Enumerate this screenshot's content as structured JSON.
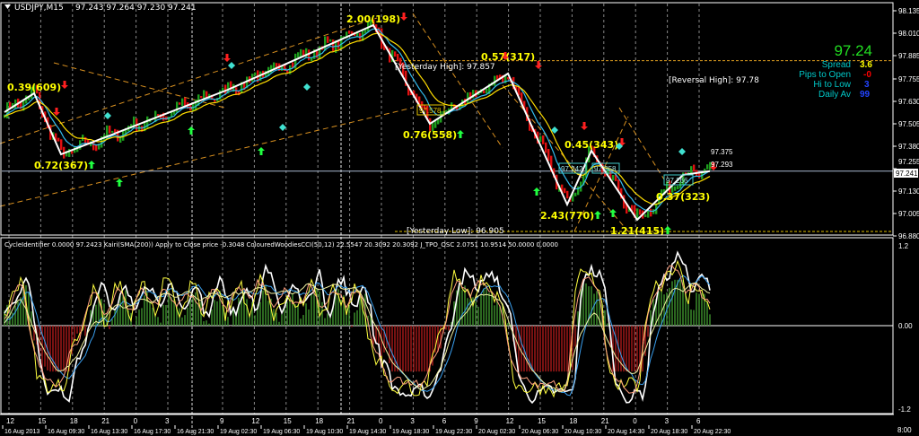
{
  "window": {
    "symbol_title": "USDJPY,M15",
    "ohlc": "97.243 97.264 97.230 97.241"
  },
  "info_panel": {
    "price": "97.24",
    "rows": [
      {
        "label": "Spread",
        "value": "3.6",
        "value_color": "#ffff00"
      },
      {
        "label": "Pips to Open",
        "value": "-0",
        "value_color": "#ff0000"
      },
      {
        "label": "Hi to Low",
        "value": "3",
        "value_color": "#0000ff"
      },
      {
        "label": "Daily Av",
        "value": "99",
        "value_color": "#0000ff"
      }
    ],
    "label_color": "#00c8c8",
    "price_color": "#00ff00"
  },
  "levels": {
    "yesterday_high": {
      "text": "[Yesterday High]: 97.857",
      "price": 97.857
    },
    "yesterday_low": {
      "text": "[Yesterday Low]: 96.905",
      "price": 96.905
    },
    "reversal_high": {
      "text": "[Reversal High]: 97.78",
      "price": 97.78
    },
    "current": {
      "text": "97.241",
      "price": 97.241
    }
  },
  "price_boxes": [
    "97.578",
    "97.242",
    "97.258",
    "97.266"
  ],
  "right_level_texts": [
    "97.375",
    "97.293"
  ],
  "indicator_header": "CycleIdentifier 0.0000 97.2423  Kairi(SMA(200)) Apply to Close price -0.3048  ColouredWoodiesCCI(50,12) 22.5547 20.3092 20.3092  J_TPO_OSC 2.0751 10.9514 50.0000 0.0000",
  "chart_data": {
    "type": "candlestick",
    "symbol": "USDJPY",
    "timeframe": "M15",
    "price_axis_ticks": [
      "98.135",
      "98.010",
      "97.885",
      "97.755",
      "97.630",
      "97.505",
      "97.380",
      "97.255",
      "97.130",
      "97.005",
      "96.880"
    ],
    "ylim": [
      96.88,
      98.135
    ],
    "indicator_axis_ticks": [
      "1.2",
      "0.00",
      "-1.2"
    ],
    "indicator_ylim": [
      -1.2,
      1.2
    ],
    "hour_ticks": [
      "12",
      "15",
      "18",
      "21",
      "0",
      "3",
      "9",
      "12",
      "15",
      "18",
      "21",
      "0",
      "3",
      "6",
      "9",
      "12",
      "15",
      "18",
      "21",
      "0",
      "3",
      "6"
    ],
    "date_ticks": [
      "16 Aug 2013",
      "16 Aug 09:30",
      "16 Aug 13:30",
      "16 Aug 17:30",
      "16 Aug 21:30",
      "19 Aug 02:30",
      "19 Aug 06:30",
      "19 Aug 10:30",
      "19 Aug 14:30",
      "19 Aug 18:30",
      "19 Aug 22:30",
      "20 Aug 02:30",
      "20 Aug 06:30",
      "20 Aug 10:30",
      "20 Aug 14:30",
      "20 Aug 18:30",
      "20 Aug 22:30"
    ],
    "corner_label": "8:00",
    "zigzag": [
      {
        "bar": 0,
        "price": 97.57,
        "label": ""
      },
      {
        "bar": 11,
        "price": 97.675,
        "label": "0.39(609)"
      },
      {
        "bar": 21,
        "price": 97.335,
        "label": "0.72(367)"
      },
      {
        "bar": 83,
        "price": 97.695,
        "label": ""
      },
      {
        "bar": 137,
        "price": 98.055,
        "label": "2.00(198)"
      },
      {
        "bar": 158,
        "price": 97.505,
        "label": "0.76(558)"
      },
      {
        "bar": 187,
        "price": 97.785,
        "label": "0.57(317)"
      },
      {
        "bar": 209,
        "price": 97.055,
        "label": "2.43(770)"
      },
      {
        "bar": 218,
        "price": 97.355,
        "label": "0.45(343)"
      },
      {
        "bar": 235,
        "price": 96.97,
        "label": "1.21(415)"
      },
      {
        "bar": 252,
        "price": 97.22,
        "label": "0.37(323)"
      },
      {
        "bar": 262,
        "price": 97.241,
        "label": ""
      }
    ],
    "colors": {
      "bull": "#1e9e1e",
      "bear": "#e01010",
      "zigzag": "#ffffff",
      "ma_fast": "#33bbee",
      "ma_slow": "#ffdd00",
      "channel": "#d89020"
    }
  }
}
